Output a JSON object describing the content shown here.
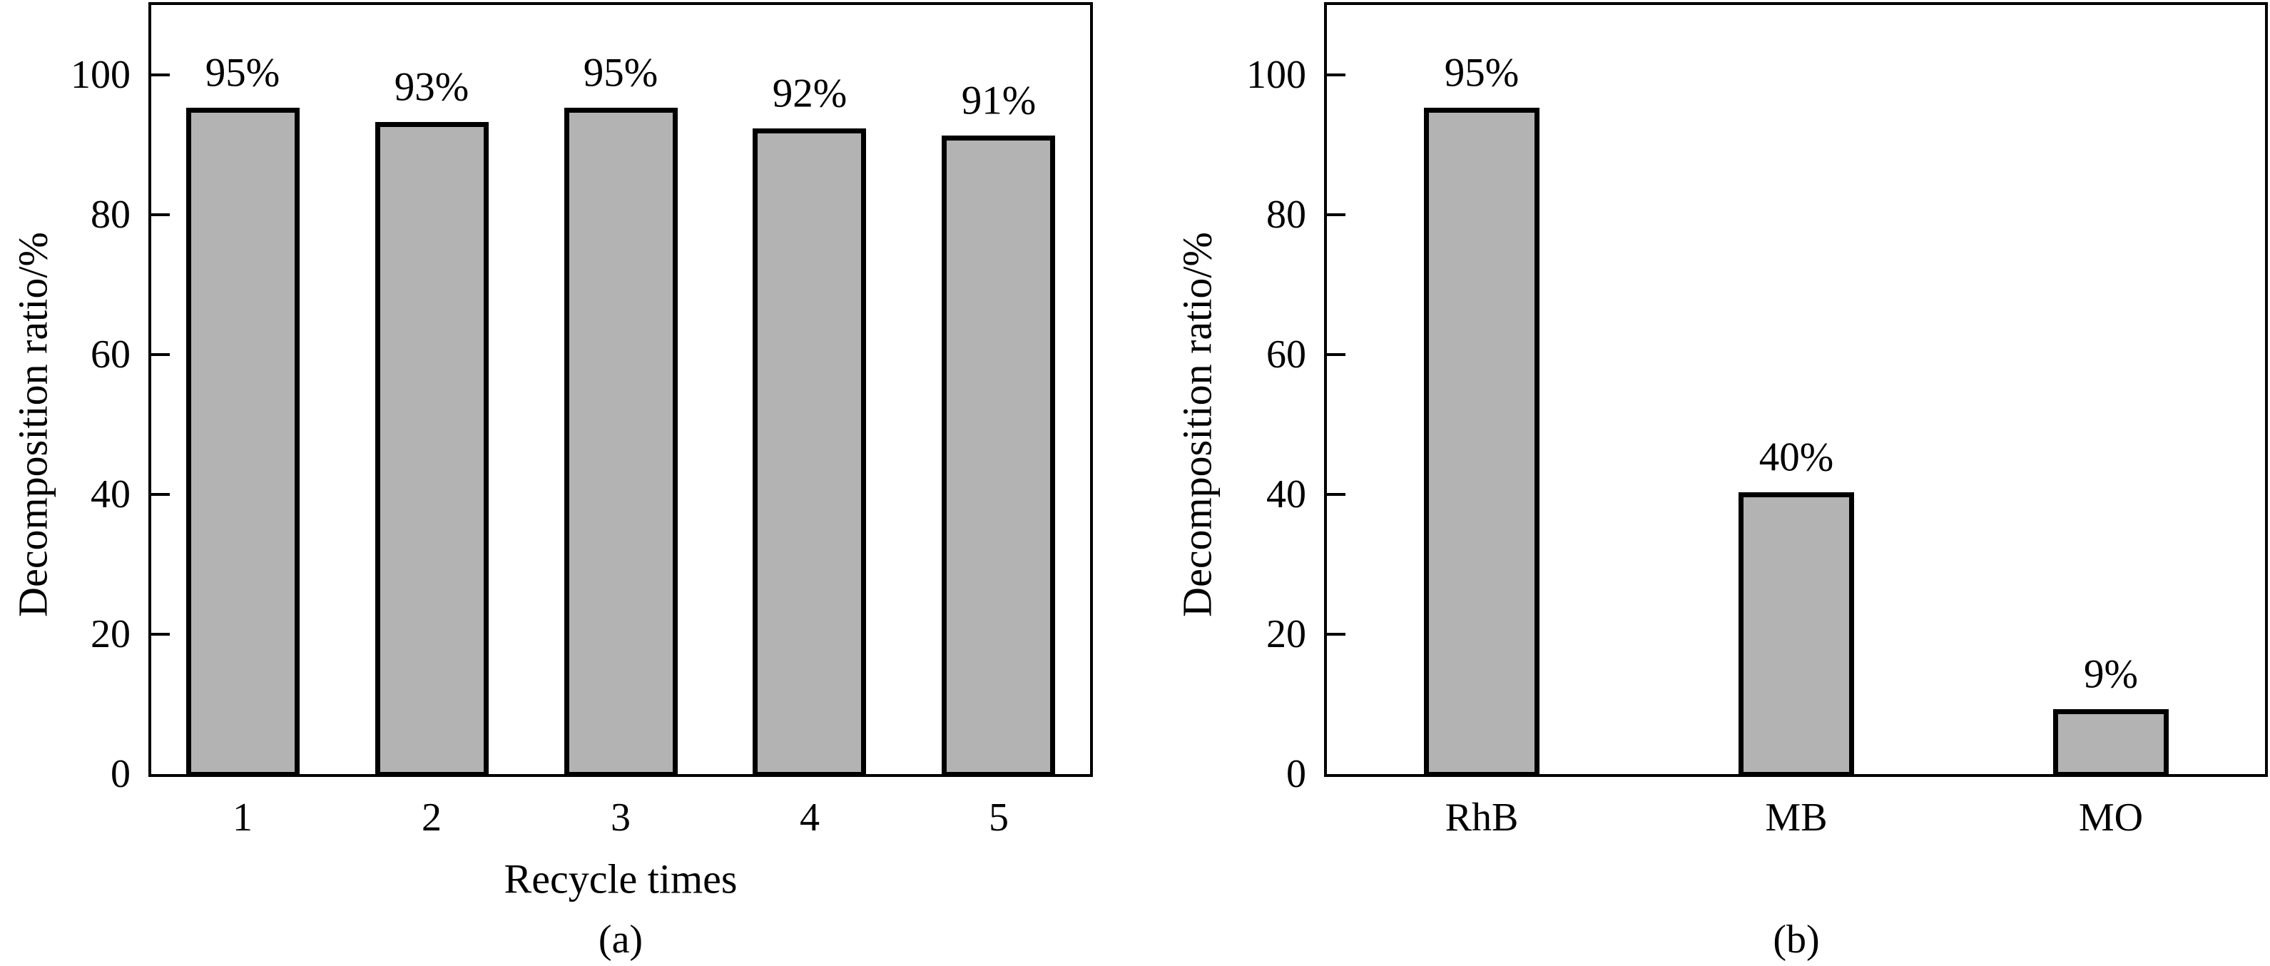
{
  "figure": {
    "background": "#ffffff",
    "text_color": "#000000",
    "axis_color": "#000000"
  },
  "chart_data": [
    {
      "type": "bar",
      "panel": "a",
      "caption": "(a)",
      "title": "",
      "ylabel": "Decomposition ratio/%",
      "xlabel": "Recycle times",
      "categories": [
        "1",
        "2",
        "3",
        "4",
        "5"
      ],
      "values": [
        95,
        93,
        95,
        92,
        91
      ],
      "bar_labels": [
        "95%",
        "93%",
        "95%",
        "92%",
        "91%"
      ],
      "yticks": [
        0,
        20,
        40,
        60,
        80,
        100
      ],
      "ylim": [
        0,
        110
      ],
      "grid": false,
      "legend": "none",
      "bar_fill": "#b3b3b3",
      "bar_border": "#000000"
    },
    {
      "type": "bar",
      "panel": "b",
      "caption": "(b)",
      "title": "",
      "ylabel": "Decomposition ratio/%",
      "xlabel": "",
      "categories": [
        "RhB",
        "MB",
        "MO"
      ],
      "values": [
        95,
        40,
        9
      ],
      "bar_labels": [
        "95%",
        "40%",
        "9%"
      ],
      "yticks": [
        0,
        20,
        40,
        60,
        80,
        100
      ],
      "ylim": [
        0,
        110
      ],
      "grid": false,
      "legend": "none",
      "bar_fill": "#b3b3b3",
      "bar_border": "#000000"
    }
  ]
}
